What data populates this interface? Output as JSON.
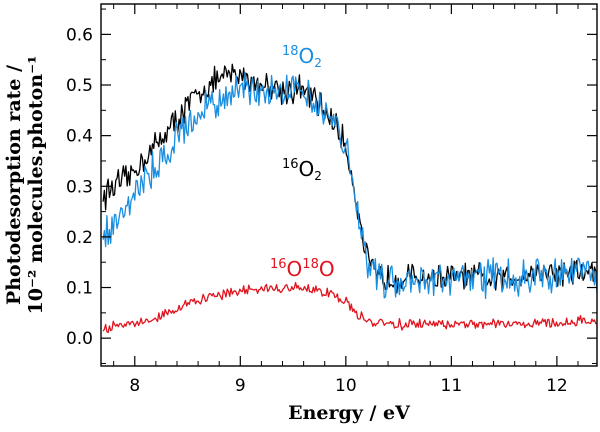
{
  "chart_data": {
    "type": "line",
    "title": "",
    "xlabel": "Energy / eV",
    "ylabel_line1": "Photodesorption rate /",
    "ylabel_line2": "10⁻² molecules.photon⁻¹",
    "xlim": [
      7.68,
      12.38
    ],
    "ylim": [
      -0.055,
      0.66
    ],
    "xticks": [
      "8",
      "9",
      "10",
      "11",
      "12"
    ],
    "yticks": [
      "0.0",
      "0.1",
      "0.2",
      "0.3",
      "0.4",
      "0.5",
      "0.6"
    ],
    "series": [
      {
        "name": "16O2",
        "label_parts": {
          "mass": "16",
          "element": "O",
          "count": "2"
        },
        "color": "#000000",
        "x": [
          7.7,
          7.8,
          7.9,
          8.0,
          8.1,
          8.2,
          8.3,
          8.4,
          8.5,
          8.6,
          8.7,
          8.8,
          8.9,
          9.0,
          9.1,
          9.2,
          9.3,
          9.4,
          9.5,
          9.6,
          9.7,
          9.8,
          9.9,
          10.0,
          10.05,
          10.1,
          10.15,
          10.2,
          10.25,
          10.3,
          10.4,
          10.5,
          10.6,
          10.7,
          10.8,
          10.9,
          11.0,
          11.1,
          11.2,
          11.3,
          11.4,
          11.5,
          11.6,
          11.7,
          11.8,
          11.9,
          12.0,
          12.1,
          12.2,
          12.3,
          12.38
        ],
        "values": [
          0.28,
          0.3,
          0.31,
          0.33,
          0.36,
          0.38,
          0.41,
          0.43,
          0.46,
          0.48,
          0.5,
          0.51,
          0.52,
          0.52,
          0.51,
          0.5,
          0.5,
          0.49,
          0.49,
          0.49,
          0.47,
          0.45,
          0.42,
          0.38,
          0.33,
          0.27,
          0.21,
          0.16,
          0.13,
          0.12,
          0.12,
          0.12,
          0.12,
          0.12,
          0.12,
          0.12,
          0.12,
          0.12,
          0.12,
          0.12,
          0.11,
          0.12,
          0.12,
          0.13,
          0.13,
          0.13,
          0.13,
          0.13,
          0.13,
          0.13,
          0.13
        ]
      },
      {
        "name": "18O2",
        "label_parts": {
          "mass": "18",
          "element": "O",
          "count": "2"
        },
        "color": "#1a8ee0",
        "x": [
          7.7,
          7.8,
          7.9,
          8.0,
          8.1,
          8.2,
          8.3,
          8.4,
          8.5,
          8.6,
          8.7,
          8.8,
          8.9,
          9.0,
          9.1,
          9.2,
          9.3,
          9.4,
          9.5,
          9.6,
          9.7,
          9.8,
          9.9,
          10.0,
          10.05,
          10.1,
          10.15,
          10.2,
          10.25,
          10.3,
          10.4,
          10.5,
          10.6,
          10.7,
          10.8,
          10.9,
          11.0,
          11.1,
          11.2,
          11.3,
          11.4,
          11.5,
          11.6,
          11.7,
          11.8,
          11.9,
          12.0,
          12.1,
          12.2,
          12.3,
          12.38
        ],
        "values": [
          0.2,
          0.23,
          0.26,
          0.29,
          0.31,
          0.34,
          0.37,
          0.4,
          0.42,
          0.44,
          0.46,
          0.47,
          0.48,
          0.49,
          0.49,
          0.49,
          0.5,
          0.5,
          0.5,
          0.49,
          0.48,
          0.45,
          0.42,
          0.38,
          0.33,
          0.27,
          0.21,
          0.16,
          0.13,
          0.12,
          0.11,
          0.11,
          0.11,
          0.11,
          0.12,
          0.12,
          0.12,
          0.12,
          0.12,
          0.12,
          0.12,
          0.12,
          0.12,
          0.12,
          0.13,
          0.12,
          0.13,
          0.13,
          0.13,
          0.12,
          0.12
        ]
      },
      {
        "name": "16O18O",
        "label_parts": {
          "mass_a": "16",
          "element_a": "O",
          "mass_b": "18",
          "element_b": "O"
        },
        "color": "#e0141e",
        "x": [
          7.7,
          7.8,
          7.9,
          8.0,
          8.1,
          8.2,
          8.3,
          8.4,
          8.5,
          8.6,
          8.7,
          8.8,
          8.9,
          9.0,
          9.1,
          9.2,
          9.3,
          9.4,
          9.5,
          9.6,
          9.7,
          9.8,
          9.9,
          10.0,
          10.05,
          10.1,
          10.2,
          10.3,
          10.4,
          10.5,
          10.6,
          10.7,
          10.8,
          10.9,
          11.0,
          11.1,
          11.2,
          11.3,
          11.4,
          11.5,
          11.6,
          11.7,
          11.8,
          11.9,
          12.0,
          12.1,
          12.2,
          12.3,
          12.38
        ],
        "values": [
          0.02,
          0.022,
          0.025,
          0.03,
          0.035,
          0.042,
          0.05,
          0.058,
          0.067,
          0.074,
          0.08,
          0.085,
          0.09,
          0.094,
          0.096,
          0.097,
          0.098,
          0.098,
          0.099,
          0.098,
          0.096,
          0.092,
          0.086,
          0.075,
          0.06,
          0.045,
          0.035,
          0.03,
          0.028,
          0.027,
          0.027,
          0.028,
          0.028,
          0.028,
          0.028,
          0.029,
          0.029,
          0.029,
          0.029,
          0.03,
          0.03,
          0.031,
          0.031,
          0.032,
          0.032,
          0.033,
          0.033,
          0.034,
          0.034
        ]
      }
    ]
  }
}
